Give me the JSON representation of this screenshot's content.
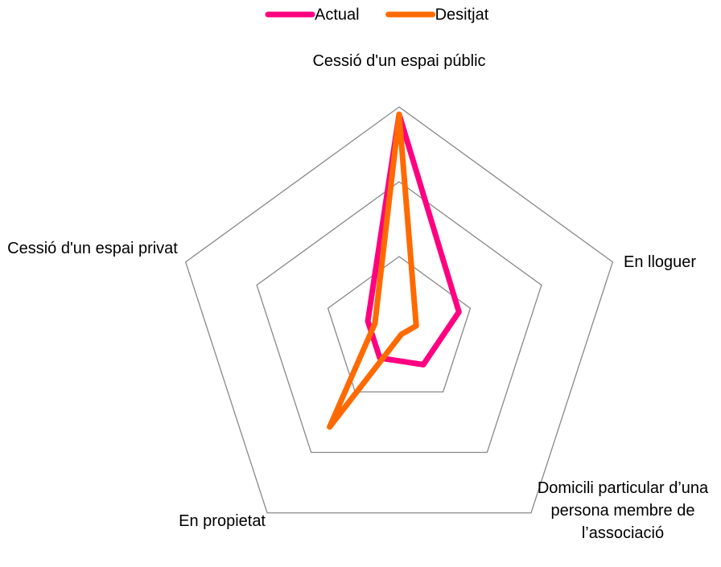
{
  "chart_data": {
    "type": "radar",
    "categories": [
      "Cessió d'un espai públic",
      "En lloguer",
      "Domicili particular d’una persona membre de l’associació",
      "En propietat",
      "Cessió d'un espai privat"
    ],
    "series": [
      {
        "name": "Actual",
        "color": "#ff0080",
        "values": [
          29,
          8.4,
          5.5,
          4.4,
          4.4
        ]
      },
      {
        "name": "Desitjat",
        "color": "#ff6a00",
        "values": [
          29,
          2.4,
          0.5,
          15.8,
          3.4
        ]
      }
    ],
    "rlim": [
      0,
      30
    ],
    "rticks": [
      10,
      20,
      30
    ],
    "grid": true,
    "legend": "top"
  }
}
